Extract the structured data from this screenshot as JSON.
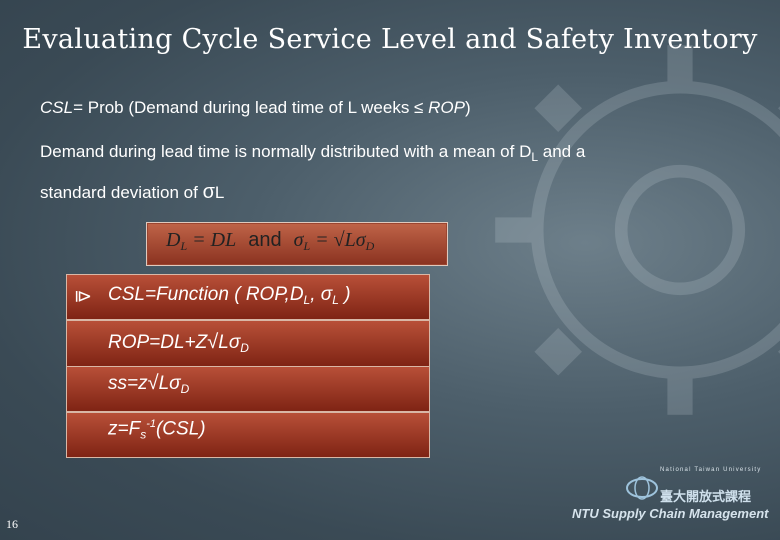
{
  "slide": {
    "title": "Evaluating Cycle Service Level and Safety Inventory",
    "line1": {
      "pre": "CSL",
      "mid": "= Prob (Demand during lead time of L weeks ",
      "op": "≤",
      "post": " ROP",
      "close": ")"
    },
    "line2": {
      "text": "Demand during lead time is normally distributed with a mean of D",
      "sub": "L",
      "tail": " and a"
    },
    "line3": {
      "text": "standard deviation of ",
      "sym": "σ",
      "sub": "L"
    },
    "formula": {
      "left": "D",
      "left_sub": "L",
      "eq1": " = DL",
      "and": "and",
      "sigma": "σ",
      "sigma_sub": "L",
      "eq2": " = ",
      "sqrt": "√",
      "rhs": "Lσ",
      "rhs_sub": "D"
    },
    "bullets": {
      "marker": "⧐",
      "b1": {
        "text": "CSL=Function ( ROP,D",
        "s1": "L",
        "mid": ", σ",
        "s2": "L",
        "end": " )"
      },
      "b2": {
        "text": "ROP=DL+Z",
        "sqrt": "√",
        "rest": "Lσ",
        "sub": "D"
      },
      "b3": {
        "text": "ss=z",
        "sqrt": "√",
        "rest": "Lσ",
        "sub": "D"
      },
      "b4": {
        "text": "z=F",
        "sub": "s",
        "sup": "-1",
        "rest": "(CSL)"
      }
    },
    "page_number": "16"
  },
  "logo": {
    "university_line": "National Taiwan University",
    "chinese_name": "臺大開放式課程",
    "footer": "NTU Supply Chain Management"
  }
}
